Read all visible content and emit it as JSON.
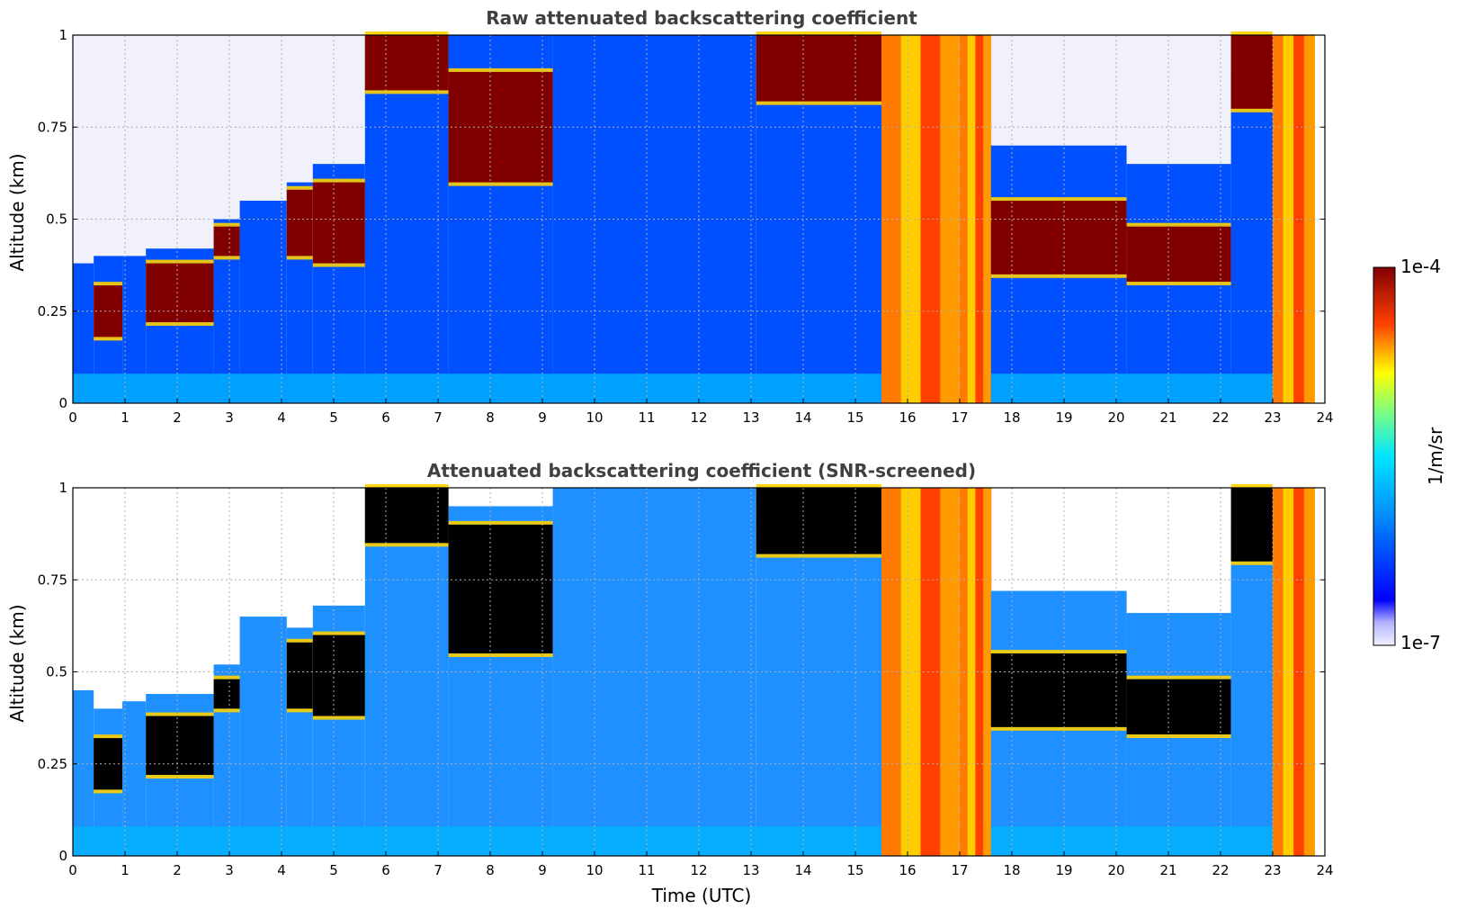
{
  "chart_data": [
    {
      "type": "heatmap",
      "title": "Raw attenuated backscattering coefficient",
      "ylabel": "Altitude (km)",
      "xlabel": "",
      "xlim": [
        0,
        24
      ],
      "ylim": [
        0,
        1
      ],
      "x_ticks": [
        "0",
        "1",
        "2",
        "3",
        "4",
        "5",
        "6",
        "7",
        "8",
        "9",
        "10",
        "11",
        "12",
        "13",
        "14",
        "15",
        "16",
        "17",
        "18",
        "19",
        "20",
        "21",
        "22",
        "23",
        "24"
      ],
      "y_ticks": [
        "0",
        "0.25",
        "0.5",
        "0.75",
        "1"
      ],
      "grid": true,
      "segments": [
        {
          "x": [
            0.0,
            0.4
          ],
          "layer": [
            0.0,
            0.38
          ],
          "cloud": null,
          "upper": "noise"
        },
        {
          "x": [
            0.4,
            0.95
          ],
          "layer": [
            0.0,
            0.4
          ],
          "cloud": [
            0.18,
            0.32
          ],
          "upper": "noise"
        },
        {
          "x": [
            0.95,
            1.4
          ],
          "layer": [
            0.0,
            0.4
          ],
          "cloud": null,
          "upper": "noise"
        },
        {
          "x": [
            1.4,
            2.7
          ],
          "layer": [
            0.0,
            0.42
          ],
          "cloud": [
            0.22,
            0.38
          ],
          "upper": "noise"
        },
        {
          "x": [
            2.7,
            3.2
          ],
          "layer": [
            0.0,
            0.5
          ],
          "cloud": [
            0.4,
            0.48
          ],
          "upper": "noise"
        },
        {
          "x": [
            3.2,
            4.1
          ],
          "layer": [
            0.0,
            0.55
          ],
          "cloud": null,
          "upper": "noise"
        },
        {
          "x": [
            4.1,
            4.6
          ],
          "layer": [
            0.0,
            0.6
          ],
          "cloud": [
            0.4,
            0.58
          ],
          "upper": "noise"
        },
        {
          "x": [
            4.6,
            5.6
          ],
          "layer": [
            0.0,
            0.65
          ],
          "cloud": [
            0.38,
            0.6
          ],
          "upper": "noise"
        },
        {
          "x": [
            5.6,
            7.2
          ],
          "layer": [
            0.0,
            1.0
          ],
          "cloud": [
            0.85,
            1.0
          ]
        },
        {
          "x": [
            7.2,
            9.2
          ],
          "layer": [
            0.0,
            1.0
          ],
          "cloud": [
            0.6,
            0.9
          ]
        },
        {
          "x": [
            9.2,
            13.1
          ],
          "layer": [
            0.0,
            1.0
          ],
          "cloud": null
        },
        {
          "x": [
            13.1,
            15.5
          ],
          "layer": [
            0.0,
            1.0
          ],
          "cloud": [
            0.82,
            1.0
          ]
        },
        {
          "x": [
            15.5,
            17.0
          ],
          "layer": [
            0.0,
            1.0
          ],
          "fog": true
        },
        {
          "x": [
            17.0,
            17.6
          ],
          "layer": [
            0.0,
            1.0
          ],
          "fog": true
        },
        {
          "x": [
            17.6,
            20.2
          ],
          "layer": [
            0.0,
            0.7
          ],
          "cloud": [
            0.35,
            0.55
          ],
          "upper": "noise"
        },
        {
          "x": [
            20.2,
            22.2
          ],
          "layer": [
            0.0,
            0.65
          ],
          "cloud": [
            0.33,
            0.48
          ],
          "upper": "noise"
        },
        {
          "x": [
            22.2,
            23.0
          ],
          "layer": [
            0.0,
            0.9
          ],
          "cloud": [
            0.8,
            1.0
          ]
        },
        {
          "x": [
            23.0,
            23.8
          ],
          "layer": [
            0.0,
            1.0
          ],
          "fog": true
        }
      ]
    },
    {
      "type": "heatmap",
      "title": "Attenuated backscattering coefficient (SNR-screened)",
      "ylabel": "Altitude (km)",
      "xlabel": "Time (UTC)",
      "xlim": [
        0,
        24
      ],
      "ylim": [
        0,
        1
      ],
      "x_ticks": [
        "0",
        "1",
        "2",
        "3",
        "4",
        "5",
        "6",
        "7",
        "8",
        "9",
        "10",
        "11",
        "12",
        "13",
        "14",
        "15",
        "16",
        "17",
        "18",
        "19",
        "20",
        "21",
        "22",
        "23",
        "24"
      ],
      "y_ticks": [
        "0",
        "0.25",
        "0.5",
        "0.75",
        "1"
      ],
      "grid": true,
      "segments": [
        {
          "x": [
            0.0,
            0.4
          ],
          "layer": [
            0.0,
            0.45
          ],
          "cloud": null
        },
        {
          "x": [
            0.4,
            0.95
          ],
          "layer": [
            0.0,
            0.4
          ],
          "cloud": [
            0.18,
            0.32
          ]
        },
        {
          "x": [
            0.95,
            1.4
          ],
          "layer": [
            0.0,
            0.42
          ],
          "cloud": null
        },
        {
          "x": [
            1.4,
            2.7
          ],
          "layer": [
            0.0,
            0.44
          ],
          "cloud": [
            0.22,
            0.38
          ]
        },
        {
          "x": [
            2.7,
            3.2
          ],
          "layer": [
            0.0,
            0.52
          ],
          "cloud": [
            0.4,
            0.48
          ]
        },
        {
          "x": [
            3.2,
            4.1
          ],
          "layer": [
            0.0,
            0.65
          ],
          "cloud": null
        },
        {
          "x": [
            4.1,
            4.6
          ],
          "layer": [
            0.0,
            0.62
          ],
          "cloud": [
            0.4,
            0.58
          ]
        },
        {
          "x": [
            4.6,
            5.6
          ],
          "layer": [
            0.0,
            0.68
          ],
          "cloud": [
            0.38,
            0.6
          ]
        },
        {
          "x": [
            5.6,
            7.2
          ],
          "layer": [
            0.0,
            1.0
          ],
          "cloud": [
            0.85,
            1.0
          ]
        },
        {
          "x": [
            7.2,
            9.2
          ],
          "layer": [
            0.0,
            0.95
          ],
          "cloud": [
            0.55,
            0.9
          ]
        },
        {
          "x": [
            9.2,
            13.1
          ],
          "layer": [
            0.0,
            1.0
          ],
          "cloud": null
        },
        {
          "x": [
            13.1,
            15.5
          ],
          "layer": [
            0.0,
            1.0
          ],
          "cloud": [
            0.82,
            1.0
          ]
        },
        {
          "x": [
            15.5,
            17.0
          ],
          "layer": [
            0.0,
            1.0
          ],
          "fog": true
        },
        {
          "x": [
            17.0,
            17.6
          ],
          "layer": [
            0.0,
            1.0
          ],
          "fog": true
        },
        {
          "x": [
            17.6,
            20.2
          ],
          "layer": [
            0.0,
            0.72
          ],
          "cloud": [
            0.35,
            0.55
          ]
        },
        {
          "x": [
            20.2,
            22.2
          ],
          "layer": [
            0.0,
            0.66
          ],
          "cloud": [
            0.33,
            0.48
          ]
        },
        {
          "x": [
            22.2,
            23.0
          ],
          "layer": [
            0.0,
            0.9
          ],
          "cloud": [
            0.8,
            1.0
          ]
        },
        {
          "x": [
            23.0,
            23.8
          ],
          "layer": [
            0.0,
            1.0
          ],
          "fog": true
        }
      ]
    }
  ],
  "colorbar": {
    "label": "1/m/sr",
    "max_label": "1e-4",
    "min_label": "1e-7",
    "scale": "log",
    "colormap": "jet"
  },
  "colors": {
    "title": "#404040",
    "low": "#e6e6fa",
    "mid": "#0050ff",
    "aerosol": "#1e90ff",
    "high": "#800000",
    "screened": "#000000"
  }
}
